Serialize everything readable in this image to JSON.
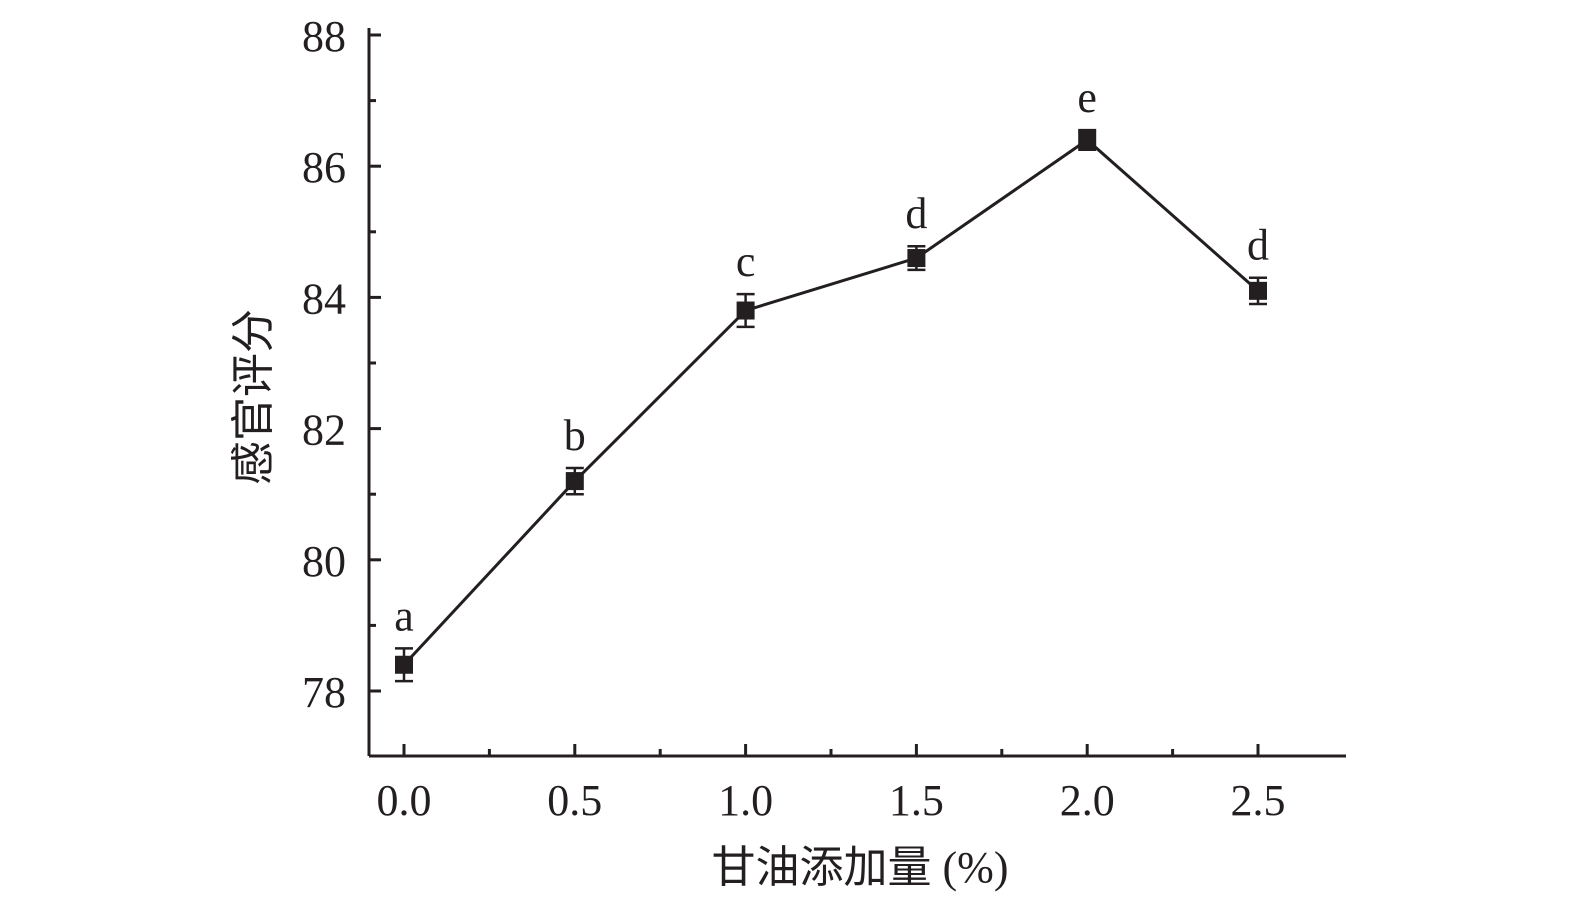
{
  "chart_data": {
    "type": "line",
    "xlabel": "甘油添加量 (%)",
    "ylabel": "感官评分",
    "title": "",
    "xlim": [
      -0.1,
      2.75
    ],
    "ylim": [
      77,
      88
    ],
    "x_ticks": [
      0.0,
      0.5,
      1.0,
      1.5,
      2.0,
      2.5
    ],
    "x_tick_labels": [
      "0.0",
      "0.5",
      "1.0",
      "1.5",
      "2.0",
      "2.5"
    ],
    "y_ticks": [
      78,
      80,
      82,
      84,
      86,
      88
    ],
    "y_tick_labels": [
      "78",
      "80",
      "82",
      "84",
      "86",
      "88"
    ],
    "grid": false,
    "series": [
      {
        "x": [
          0.0,
          0.5,
          1.0,
          1.5,
          2.0,
          2.5
        ],
        "y": [
          78.4,
          81.2,
          83.8,
          84.6,
          86.4,
          84.1
        ],
        "error": [
          0.25,
          0.2,
          0.25,
          0.18,
          0.15,
          0.2
        ],
        "labels": [
          "a",
          "b",
          "c",
          "d",
          "e",
          "d"
        ],
        "color": "#231f20",
        "marker": "square"
      }
    ]
  }
}
